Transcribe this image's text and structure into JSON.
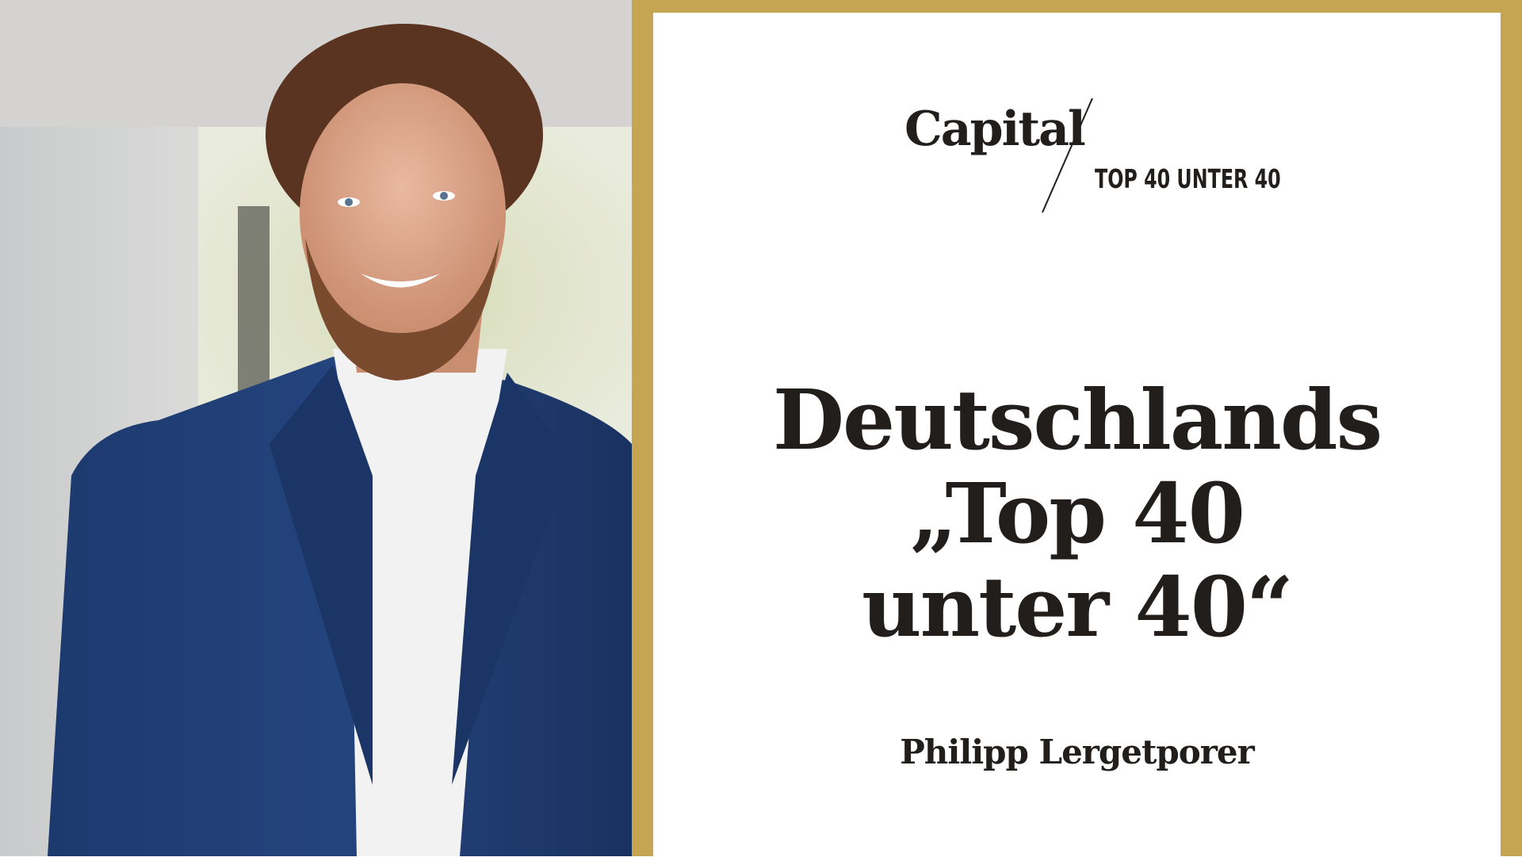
{
  "brand": {
    "logo": "Capital",
    "subtitle": "TOP 40 UNTER 40",
    "frame_color": "#c6a552"
  },
  "headline": {
    "line1": "Deutschlands",
    "line2": "„Top 40",
    "line3": "unter 40“"
  },
  "person": {
    "name": "Philipp Lergetporer"
  }
}
